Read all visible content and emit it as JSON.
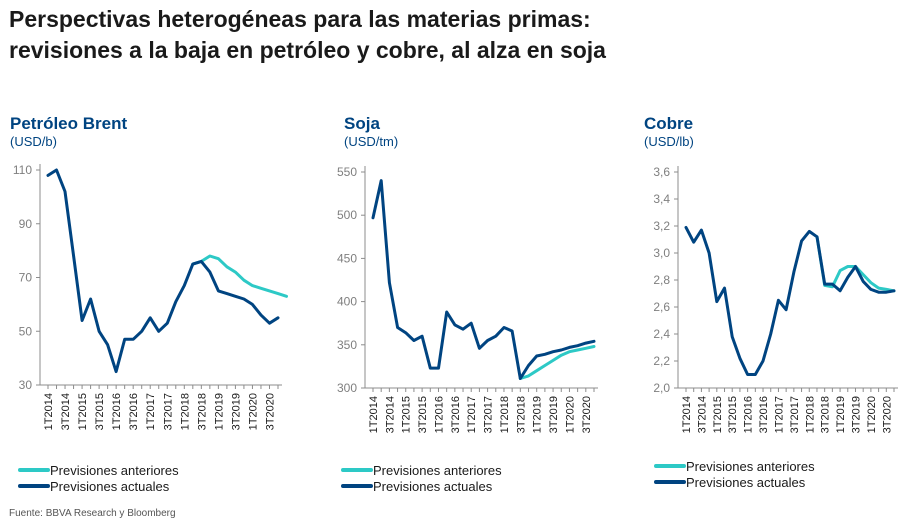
{
  "title_lines": [
    "Perspectivas heterogéneas para las materias primas:",
    "revisiones a la baja en petróleo y cobre, al alza en soja"
  ],
  "source": "Fuente: BBVA Research y Bloomberg",
  "colors": {
    "anteriores": "#2dc9c6",
    "actuales": "#004481",
    "axis": "#8c8c8c",
    "text": "#004481"
  },
  "chart_data": [
    {
      "type": "line",
      "title": "Petróleo Brent",
      "unit": "(USD/b)",
      "ylim": [
        30,
        115
      ],
      "yticks": [
        30,
        50,
        70,
        90,
        110
      ],
      "ytick_labels": [
        "30",
        "50",
        "70",
        "90",
        "110"
      ],
      "xtick_labels": [
        "1T2014",
        "3T2014",
        "1T2015",
        "3T2015",
        "1T2016",
        "3T2016",
        "1T2017",
        "3T2017",
        "1T2018",
        "3T2018",
        "1T2019",
        "3T2019",
        "1T2020",
        "3T2020"
      ],
      "legend": [
        "Previsiones anteriores",
        "Previsiones actuales"
      ],
      "series": [
        {
          "name": "Previsiones actuales",
          "values": [
            108,
            110,
            102,
            78,
            54,
            62,
            50,
            45,
            35,
            47,
            47,
            50,
            55,
            50,
            53,
            61,
            67,
            75,
            76,
            72,
            65,
            64,
            63,
            62,
            60,
            56,
            53,
            55
          ]
        },
        {
          "name": "Previsiones anteriores",
          "start_index": 17,
          "values": [
            75,
            76,
            78,
            77,
            74,
            72,
            69,
            67,
            66,
            65,
            64,
            63
          ]
        }
      ]
    },
    {
      "type": "line",
      "title": "Soja",
      "unit": "(USD/tm)",
      "ylim": [
        300,
        550
      ],
      "yticks": [
        300,
        350,
        400,
        450,
        500,
        550
      ],
      "ytick_labels": [
        "300",
        "350",
        "400",
        "450",
        "500",
        "550"
      ],
      "xtick_labels": [
        "1T2014",
        "3T2014",
        "1T2015",
        "3T2015",
        "1T2016",
        "3T2016",
        "1T2017",
        "3T2017",
        "1T2018",
        "3T2018",
        "1T2019",
        "3T2019",
        "1T2020",
        "3T2020"
      ],
      "legend": [
        "Previsiones anteriores",
        "Previsiones actuales"
      ],
      "series": [
        {
          "name": "Previsiones actuales",
          "values": [
            497,
            540,
            422,
            370,
            364,
            355,
            360,
            323,
            323,
            388,
            373,
            368,
            375,
            346,
            355,
            360,
            370,
            366,
            311,
            326,
            337,
            339,
            342,
            344,
            347,
            349,
            352,
            354
          ]
        },
        {
          "name": "Previsiones anteriores",
          "start_index": 18,
          "values": [
            311,
            314,
            320,
            326,
            332,
            338,
            342,
            344,
            346,
            348
          ]
        }
      ]
    },
    {
      "type": "line",
      "title": "Cobre",
      "unit": "(USD/lb)",
      "ylim": [
        2.0,
        3.6
      ],
      "yticks": [
        2.0,
        2.2,
        2.4,
        2.6,
        2.8,
        3.0,
        3.2,
        3.4,
        3.6
      ],
      "ytick_labels": [
        "2,0",
        "2,2",
        "2,4",
        "2,6",
        "2,8",
        "3,0",
        "3,2",
        "3,4",
        "3,6"
      ],
      "xtick_labels": [
        "1T2014",
        "3T2014",
        "1T2015",
        "3T2015",
        "1T2016",
        "3T2016",
        "1T2017",
        "3T2017",
        "1T2018",
        "3T2018",
        "1T2019",
        "3T2019",
        "1T2020",
        "3T2020"
      ],
      "legend": [
        "Previsiones anteriores",
        "Previsiones actuales"
      ],
      "series": [
        {
          "name": "Previsiones actuales",
          "values": [
            3.19,
            3.08,
            3.17,
            3.0,
            2.64,
            2.74,
            2.38,
            2.22,
            2.1,
            2.1,
            2.2,
            2.4,
            2.65,
            2.58,
            2.86,
            3.09,
            3.16,
            3.12,
            2.77,
            2.77,
            2.72,
            2.82,
            2.9,
            2.79,
            2.73,
            2.71,
            2.71,
            2.72
          ]
        },
        {
          "name": "Previsiones anteriores",
          "start_index": 17,
          "values": [
            3.12,
            2.76,
            2.75,
            2.87,
            2.9,
            2.9,
            2.84,
            2.78,
            2.74,
            2.73,
            2.72
          ]
        }
      ]
    }
  ]
}
